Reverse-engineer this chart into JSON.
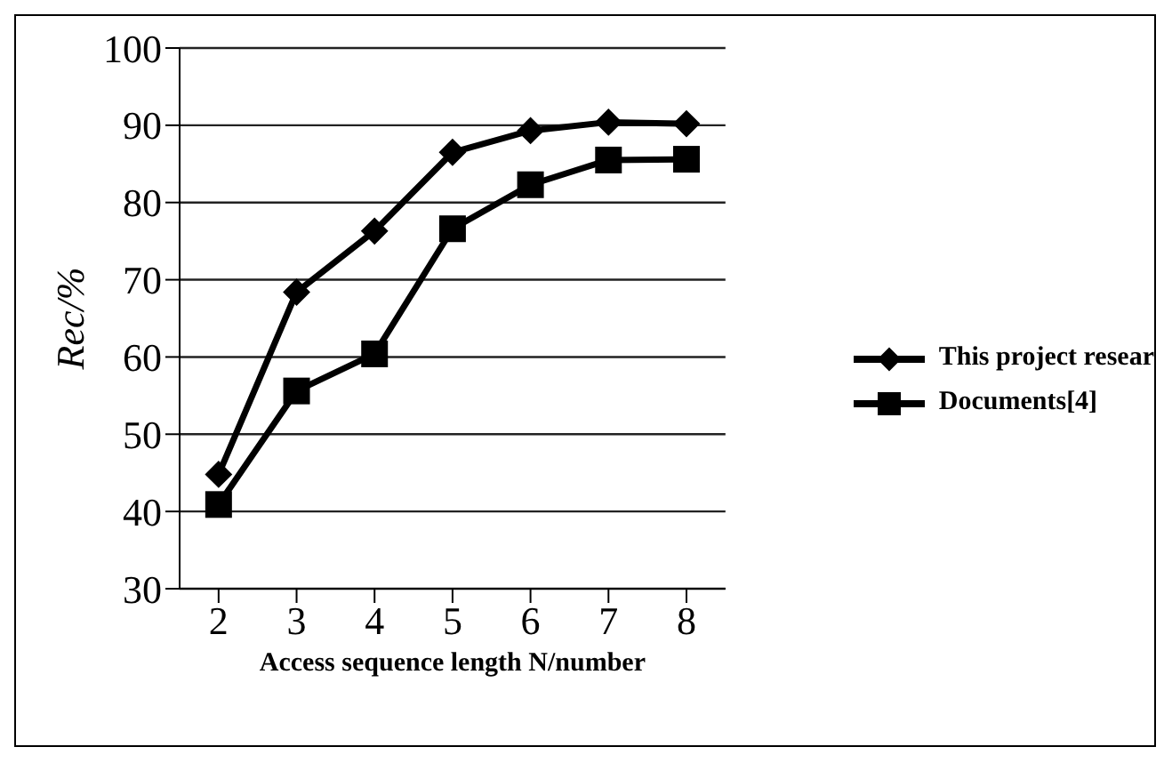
{
  "chart_data": {
    "type": "line",
    "xlabel": "Access sequence length N/number",
    "ylabel": "Rec/%",
    "categories": [
      "2",
      "3",
      "4",
      "5",
      "6",
      "7",
      "8"
    ],
    "series": [
      {
        "name": "This project resear",
        "color": "#000000",
        "marker": "diamond",
        "values": [
          44.8,
          68.4,
          76.3,
          86.5,
          89.3,
          90.4,
          90.2
        ]
      },
      {
        "name": "Documents[4]",
        "color": "#000000",
        "marker": "square",
        "values": [
          40.9,
          55.6,
          60.4,
          76.6,
          82.3,
          85.5,
          85.6
        ]
      }
    ],
    "ylim": [
      30,
      100
    ],
    "yticks": [
      30,
      40,
      50,
      60,
      70,
      80,
      90,
      100
    ],
    "grid": "y",
    "legend": "right",
    "line_style": "solid"
  }
}
